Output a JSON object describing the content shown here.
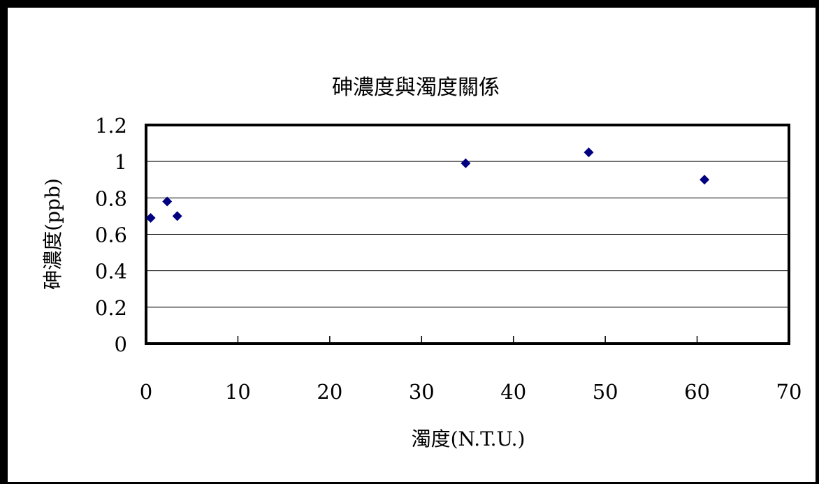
{
  "chart_data": {
    "type": "scatter",
    "title": "砷濃度與濁度關係",
    "xlabel": "濁度(N.T.U.)",
    "ylabel": "砷濃度(ppb)",
    "xlim": [
      0,
      70
    ],
    "ylim": [
      0,
      1.2
    ],
    "xticks": [
      0,
      10,
      20,
      30,
      40,
      50,
      60,
      70
    ],
    "yticks": [
      0,
      0.2,
      0.4,
      0.6,
      0.8,
      1,
      1.2
    ],
    "xtick_labels": [
      "0",
      "10",
      "20",
      "30",
      "40",
      "50",
      "60",
      "70"
    ],
    "ytick_labels": [
      "0",
      "0.2",
      "0.4",
      "0.6",
      "0.8",
      "1",
      "1.2"
    ],
    "grid": "horizontal",
    "legend": "none",
    "marker": "diamond",
    "colors": {
      "marker": "#000080",
      "grid": "#000000",
      "axis": "#000000"
    },
    "points": [
      {
        "x": 0.5,
        "y": 0.69
      },
      {
        "x": 2.3,
        "y": 0.78
      },
      {
        "x": 3.4,
        "y": 0.7
      },
      {
        "x": 34.8,
        "y": 0.99
      },
      {
        "x": 48.2,
        "y": 1.05
      },
      {
        "x": 60.8,
        "y": 0.9
      }
    ]
  }
}
